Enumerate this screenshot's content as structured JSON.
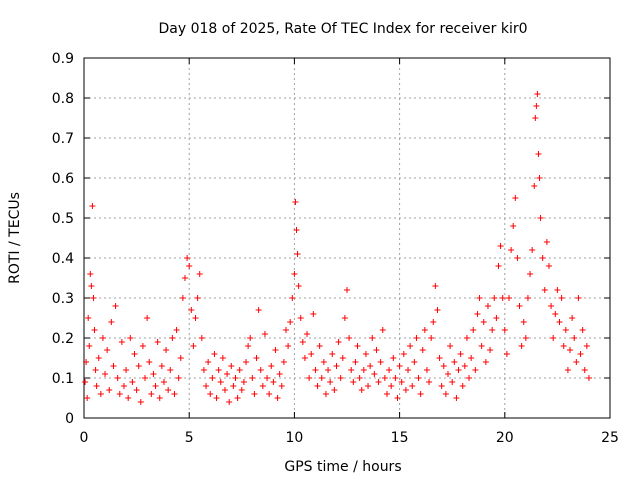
{
  "chart_data": {
    "type": "scatter",
    "title": "Day 018 of 2025, Rate Of TEC Index for receiver kir0",
    "xlabel": "GPS time / hours",
    "ylabel": "ROTI / TECUs",
    "xlim": [
      0,
      25
    ],
    "ylim": [
      0,
      0.9
    ],
    "xticks": [
      0,
      5,
      10,
      15,
      20,
      25
    ],
    "xtick_labels": [
      "0",
      "5",
      "10",
      "15",
      "20",
      "25"
    ],
    "yticks": [
      0,
      0.1,
      0.2,
      0.3,
      0.4,
      0.5,
      0.6,
      0.7,
      0.8,
      0.9
    ],
    "ytick_labels": [
      "0",
      "0.1",
      "0.2",
      "0.3",
      "0.4",
      "0.5",
      "0.6",
      "0.7",
      "0.8",
      "0.9"
    ],
    "grid": true,
    "marker": "+",
    "color": "#ff0000",
    "series": [
      {
        "name": "ROTI",
        "points": [
          [
            0.05,
            0.09
          ],
          [
            0.1,
            0.14
          ],
          [
            0.15,
            0.05
          ],
          [
            0.2,
            0.25
          ],
          [
            0.25,
            0.18
          ],
          [
            0.3,
            0.36
          ],
          [
            0.35,
            0.33
          ],
          [
            0.4,
            0.53
          ],
          [
            0.45,
            0.3
          ],
          [
            0.5,
            0.22
          ],
          [
            0.55,
            0.12
          ],
          [
            0.6,
            0.08
          ],
          [
            0.7,
            0.15
          ],
          [
            0.8,
            0.06
          ],
          [
            0.9,
            0.2
          ],
          [
            1.0,
            0.11
          ],
          [
            1.1,
            0.17
          ],
          [
            1.2,
            0.07
          ],
          [
            1.3,
            0.24
          ],
          [
            1.4,
            0.13
          ],
          [
            1.5,
            0.28
          ],
          [
            1.6,
            0.1
          ],
          [
            1.7,
            0.06
          ],
          [
            1.8,
            0.19
          ],
          [
            1.9,
            0.08
          ],
          [
            2.0,
            0.12
          ],
          [
            2.1,
            0.05
          ],
          [
            2.2,
            0.2
          ],
          [
            2.3,
            0.09
          ],
          [
            2.4,
            0.16
          ],
          [
            2.5,
            0.07
          ],
          [
            2.6,
            0.13
          ],
          [
            2.7,
            0.04
          ],
          [
            2.8,
            0.18
          ],
          [
            2.9,
            0.1
          ],
          [
            3.0,
            0.25
          ],
          [
            3.1,
            0.14
          ],
          [
            3.2,
            0.06
          ],
          [
            3.3,
            0.11
          ],
          [
            3.4,
            0.08
          ],
          [
            3.5,
            0.19
          ],
          [
            3.6,
            0.05
          ],
          [
            3.7,
            0.13
          ],
          [
            3.8,
            0.09
          ],
          [
            3.9,
            0.17
          ],
          [
            4.0,
            0.07
          ],
          [
            4.1,
            0.12
          ],
          [
            4.2,
            0.2
          ],
          [
            4.3,
            0.06
          ],
          [
            4.4,
            0.22
          ],
          [
            4.5,
            0.1
          ],
          [
            4.6,
            0.15
          ],
          [
            4.7,
            0.3
          ],
          [
            4.8,
            0.35
          ],
          [
            4.9,
            0.4
          ],
          [
            5.0,
            0.38
          ],
          [
            5.1,
            0.27
          ],
          [
            5.2,
            0.18
          ],
          [
            5.3,
            0.25
          ],
          [
            5.4,
            0.3
          ],
          [
            5.5,
            0.36
          ],
          [
            5.6,
            0.2
          ],
          [
            5.7,
            0.12
          ],
          [
            5.8,
            0.08
          ],
          [
            5.9,
            0.14
          ],
          [
            6.0,
            0.06
          ],
          [
            6.1,
            0.1
          ],
          [
            6.2,
            0.16
          ],
          [
            6.3,
            0.05
          ],
          [
            6.4,
            0.12
          ],
          [
            6.5,
            0.09
          ],
          [
            6.6,
            0.15
          ],
          [
            6.7,
            0.07
          ],
          [
            6.8,
            0.11
          ],
          [
            6.9,
            0.04
          ],
          [
            7.0,
            0.13
          ],
          [
            7.1,
            0.08
          ],
          [
            7.2,
            0.1
          ],
          [
            7.3,
            0.05
          ],
          [
            7.4,
            0.12
          ],
          [
            7.5,
            0.07
          ],
          [
            7.6,
            0.09
          ],
          [
            7.7,
            0.14
          ],
          [
            7.8,
            0.18
          ],
          [
            7.9,
            0.2
          ],
          [
            8.0,
            0.1
          ],
          [
            8.1,
            0.06
          ],
          [
            8.2,
            0.15
          ],
          [
            8.3,
            0.27
          ],
          [
            8.4,
            0.12
          ],
          [
            8.5,
            0.08
          ],
          [
            8.6,
            0.21
          ],
          [
            8.7,
            0.1
          ],
          [
            8.8,
            0.06
          ],
          [
            8.9,
            0.13
          ],
          [
            9.0,
            0.09
          ],
          [
            9.1,
            0.17
          ],
          [
            9.2,
            0.05
          ],
          [
            9.3,
            0.11
          ],
          [
            9.4,
            0.08
          ],
          [
            9.5,
            0.14
          ],
          [
            9.6,
            0.22
          ],
          [
            9.7,
            0.18
          ],
          [
            9.8,
            0.24
          ],
          [
            9.9,
            0.3
          ],
          [
            10.0,
            0.36
          ],
          [
            10.05,
            0.54
          ],
          [
            10.1,
            0.47
          ],
          [
            10.15,
            0.41
          ],
          [
            10.2,
            0.33
          ],
          [
            10.3,
            0.25
          ],
          [
            10.4,
            0.19
          ],
          [
            10.5,
            0.15
          ],
          [
            10.6,
            0.21
          ],
          [
            10.7,
            0.1
          ],
          [
            10.8,
            0.16
          ],
          [
            10.9,
            0.26
          ],
          [
            11.0,
            0.12
          ],
          [
            11.1,
            0.08
          ],
          [
            11.2,
            0.18
          ],
          [
            11.3,
            0.1
          ],
          [
            11.4,
            0.14
          ],
          [
            11.5,
            0.06
          ],
          [
            11.6,
            0.12
          ],
          [
            11.7,
            0.09
          ],
          [
            11.8,
            0.16
          ],
          [
            11.9,
            0.07
          ],
          [
            12.0,
            0.13
          ],
          [
            12.1,
            0.19
          ],
          [
            12.2,
            0.1
          ],
          [
            12.3,
            0.15
          ],
          [
            12.4,
            0.25
          ],
          [
            12.5,
            0.32
          ],
          [
            12.6,
            0.2
          ],
          [
            12.7,
            0.12
          ],
          [
            12.8,
            0.09
          ],
          [
            12.9,
            0.14
          ],
          [
            13.0,
            0.18
          ],
          [
            13.1,
            0.1
          ],
          [
            13.2,
            0.07
          ],
          [
            13.3,
            0.12
          ],
          [
            13.4,
            0.16
          ],
          [
            13.5,
            0.08
          ],
          [
            13.6,
            0.13
          ],
          [
            13.7,
            0.2
          ],
          [
            13.8,
            0.11
          ],
          [
            13.9,
            0.17
          ],
          [
            14.0,
            0.09
          ],
          [
            14.1,
            0.14
          ],
          [
            14.2,
            0.22
          ],
          [
            14.3,
            0.1
          ],
          [
            14.4,
            0.06
          ],
          [
            14.5,
            0.12
          ],
          [
            14.6,
            0.08
          ],
          [
            14.7,
            0.15
          ],
          [
            14.8,
            0.1
          ],
          [
            14.9,
            0.05
          ],
          [
            15.0,
            0.13
          ],
          [
            15.1,
            0.09
          ],
          [
            15.2,
            0.16
          ],
          [
            15.3,
            0.07
          ],
          [
            15.4,
            0.12
          ],
          [
            15.5,
            0.18
          ],
          [
            15.6,
            0.08
          ],
          [
            15.7,
            0.14
          ],
          [
            15.8,
            0.2
          ],
          [
            15.9,
            0.1
          ],
          [
            16.0,
            0.06
          ],
          [
            16.1,
            0.17
          ],
          [
            16.2,
            0.22
          ],
          [
            16.3,
            0.12
          ],
          [
            16.4,
            0.09
          ],
          [
            16.5,
            0.2
          ],
          [
            16.6,
            0.24
          ],
          [
            16.7,
            0.33
          ],
          [
            16.8,
            0.27
          ],
          [
            16.9,
            0.15
          ],
          [
            17.0,
            0.08
          ],
          [
            17.1,
            0.13
          ],
          [
            17.2,
            0.06
          ],
          [
            17.3,
            0.11
          ],
          [
            17.4,
            0.18
          ],
          [
            17.5,
            0.09
          ],
          [
            17.6,
            0.14
          ],
          [
            17.7,
            0.05
          ],
          [
            17.8,
            0.12
          ],
          [
            17.9,
            0.16
          ],
          [
            18.0,
            0.08
          ],
          [
            18.1,
            0.13
          ],
          [
            18.2,
            0.2
          ],
          [
            18.3,
            0.1
          ],
          [
            18.4,
            0.15
          ],
          [
            18.5,
            0.22
          ],
          [
            18.6,
            0.12
          ],
          [
            18.7,
            0.26
          ],
          [
            18.8,
            0.3
          ],
          [
            18.9,
            0.18
          ],
          [
            19.0,
            0.24
          ],
          [
            19.1,
            0.14
          ],
          [
            19.2,
            0.28
          ],
          [
            19.3,
            0.17
          ],
          [
            19.4,
            0.22
          ],
          [
            19.5,
            0.3
          ],
          [
            19.6,
            0.25
          ],
          [
            19.7,
            0.38
          ],
          [
            19.8,
            0.43
          ],
          [
            19.9,
            0.3
          ],
          [
            20.0,
            0.22
          ],
          [
            20.1,
            0.16
          ],
          [
            20.2,
            0.3
          ],
          [
            20.3,
            0.42
          ],
          [
            20.4,
            0.48
          ],
          [
            20.5,
            0.55
          ],
          [
            20.6,
            0.4
          ],
          [
            20.7,
            0.28
          ],
          [
            20.8,
            0.18
          ],
          [
            20.9,
            0.24
          ],
          [
            21.0,
            0.2
          ],
          [
            21.1,
            0.3
          ],
          [
            21.2,
            0.36
          ],
          [
            21.3,
            0.42
          ],
          [
            21.4,
            0.58
          ],
          [
            21.45,
            0.75
          ],
          [
            21.5,
            0.78
          ],
          [
            21.55,
            0.81
          ],
          [
            21.6,
            0.66
          ],
          [
            21.65,
            0.6
          ],
          [
            21.7,
            0.5
          ],
          [
            21.8,
            0.4
          ],
          [
            21.9,
            0.32
          ],
          [
            22.0,
            0.44
          ],
          [
            22.1,
            0.38
          ],
          [
            22.2,
            0.28
          ],
          [
            22.3,
            0.2
          ],
          [
            22.4,
            0.26
          ],
          [
            22.5,
            0.32
          ],
          [
            22.6,
            0.24
          ],
          [
            22.7,
            0.3
          ],
          [
            22.8,
            0.18
          ],
          [
            22.9,
            0.22
          ],
          [
            23.0,
            0.12
          ],
          [
            23.1,
            0.17
          ],
          [
            23.2,
            0.25
          ],
          [
            23.3,
            0.2
          ],
          [
            23.4,
            0.14
          ],
          [
            23.5,
            0.3
          ],
          [
            23.6,
            0.16
          ],
          [
            23.7,
            0.22
          ],
          [
            23.8,
            0.12
          ],
          [
            23.9,
            0.18
          ],
          [
            24.0,
            0.1
          ]
        ]
      }
    ]
  }
}
